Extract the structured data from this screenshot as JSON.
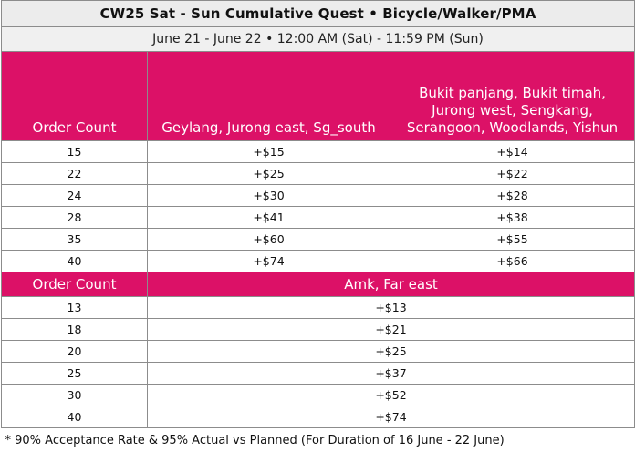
{
  "title": "CW25 Sat - Sun Cumulative Quest • Bicycle/Walker/PMA",
  "subtitle": "June 21 - June 22 • 12:00 AM (Sat) - 11:59 PM (Sun)",
  "section1": {
    "order_count_header": "Order Count",
    "zone_a": "Geylang, Jurong east, Sg_south",
    "zone_b": "Bukit panjang, Bukit timah, Jurong west, Sengkang, Serangoon, Woodlands, Yishun",
    "rows": [
      {
        "count": "15",
        "a": "+$15",
        "b": "+$14"
      },
      {
        "count": "22",
        "a": "+$25",
        "b": "+$22"
      },
      {
        "count": "24",
        "a": "+$30",
        "b": "+$28"
      },
      {
        "count": "28",
        "a": "+$41",
        "b": "+$38"
      },
      {
        "count": "35",
        "a": "+$60",
        "b": "+$55"
      },
      {
        "count": "40",
        "a": "+$74",
        "b": "+$66"
      }
    ]
  },
  "section2": {
    "order_count_header": "Order Count",
    "zone": "Amk, Far east",
    "rows": [
      {
        "count": "13",
        "amount": "+$13"
      },
      {
        "count": "18",
        "amount": "+$21"
      },
      {
        "count": "20",
        "amount": "+$25"
      },
      {
        "count": "25",
        "amount": "+$37"
      },
      {
        "count": "30",
        "amount": "+$52"
      },
      {
        "count": "40",
        "amount": "+$74"
      }
    ]
  },
  "footnote": "* 90% Acceptance Rate & 95% Actual vs Planned (For Duration of 16 June - 22 June)",
  "colors": {
    "header_bg": "#dc1167",
    "header_text": "#ffffff"
  }
}
